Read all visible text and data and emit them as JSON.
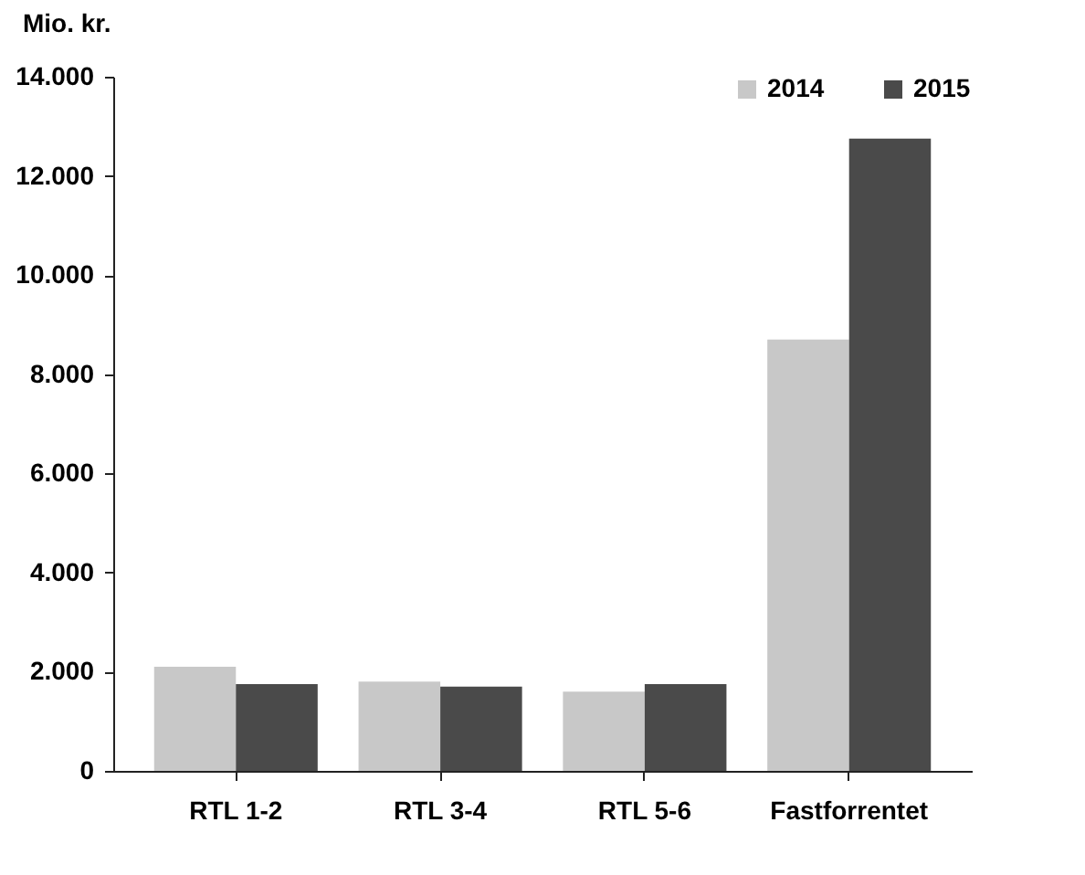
{
  "chart_data": {
    "type": "bar",
    "ylabel": "Mio. kr.",
    "categories": [
      "RTL 1-2",
      "RTL 3-4",
      "RTL 5-6",
      "Fastforrentet"
    ],
    "series": [
      {
        "name": "2014",
        "color": "#c8c8c8",
        "values": [
          2100,
          1800,
          1600,
          8700
        ]
      },
      {
        "name": "2015",
        "color": "#4a4a4a",
        "values": [
          1750,
          1700,
          1750,
          12750
        ]
      }
    ],
    "ylim": [
      0,
      14000
    ],
    "yticks": [
      0,
      {
        "value": 2000,
        "label": "2.000"
      },
      {
        "value": 4000,
        "label": "4.000"
      },
      {
        "value": 6000,
        "label": "6.000"
      },
      {
        "value": 8000,
        "label": "8.000"
      },
      {
        "value": 10000,
        "label": "10.000"
      },
      {
        "value": 12000,
        "label": "12.000"
      },
      {
        "value": 14000,
        "label": "14.000"
      }
    ],
    "grid": false,
    "legend": "top right"
  }
}
